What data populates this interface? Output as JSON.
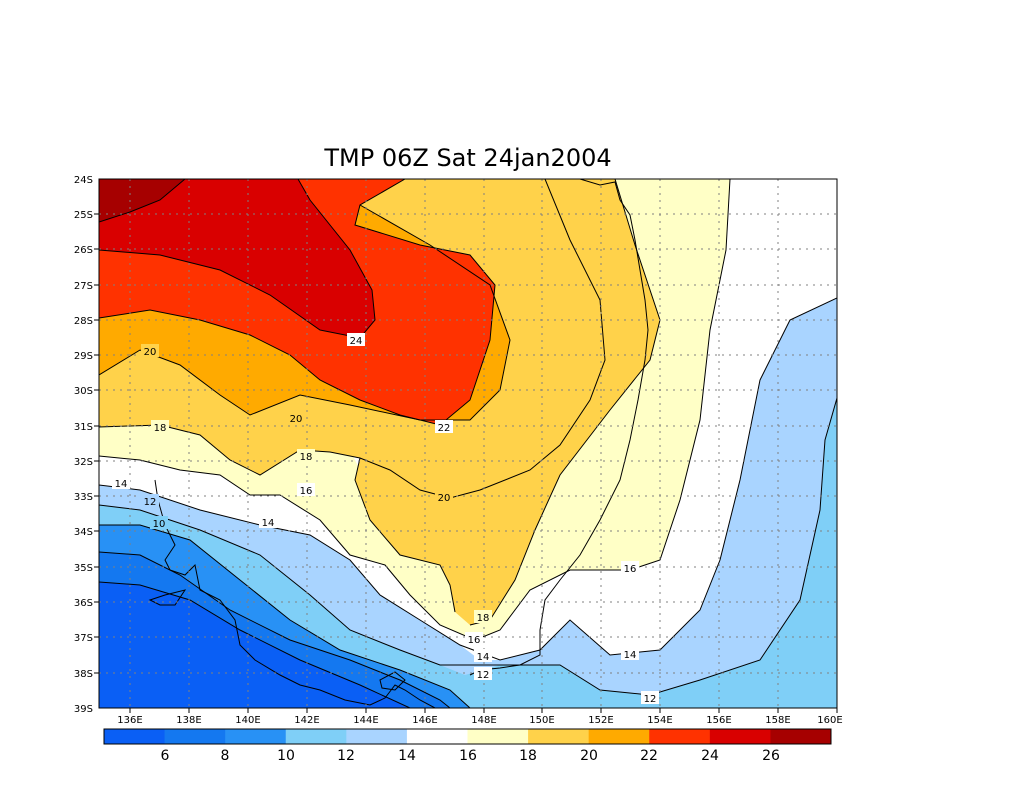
{
  "title": "TMP 06Z Sat 24jan2004",
  "lat_labels": [
    "24S",
    "25S",
    "26S",
    "27S",
    "28S",
    "29S",
    "30S",
    "31S",
    "32S",
    "33S",
    "34S",
    "35S",
    "36S",
    "37S",
    "38S",
    "39S"
  ],
  "lon_labels": [
    "136E",
    "138E",
    "140E",
    "142E",
    "144E",
    "146E",
    "148E",
    "150E",
    "152E",
    "154E",
    "156E",
    "158E",
    "160E"
  ],
  "contour_labels": [
    "20",
    "24",
    "18",
    "20",
    "22",
    "18",
    "16",
    "20",
    "14",
    "12",
    "10",
    "14",
    "18",
    "16",
    "16",
    "14",
    "14",
    "12",
    "12"
  ],
  "colorbar": {
    "colors": [
      "#0a5ff5",
      "#1478f0",
      "#2891f5",
      "#7fcff7",
      "#a9d4ff",
      "#ffffff",
      "#ffffc6",
      "#ffd24a",
      "#ffaa00",
      "#ff3200",
      "#d90000",
      "#a60000"
    ],
    "labels": [
      "6",
      "8",
      "10",
      "12",
      "14",
      "16",
      "18",
      "20",
      "22",
      "24",
      "26"
    ]
  },
  "colors": {
    "c6": "#0a5ff5",
    "c8": "#1478f0",
    "c10": "#2891f5",
    "c12": "#7fcff7",
    "c14": "#a9d4ff",
    "c16": "#ffffff",
    "c18": "#ffffc6",
    "c20": "#ffd24a",
    "c22": "#ffaa00",
    "c24": "#ff3200",
    "c26": "#d90000",
    "c28": "#a60000"
  }
}
